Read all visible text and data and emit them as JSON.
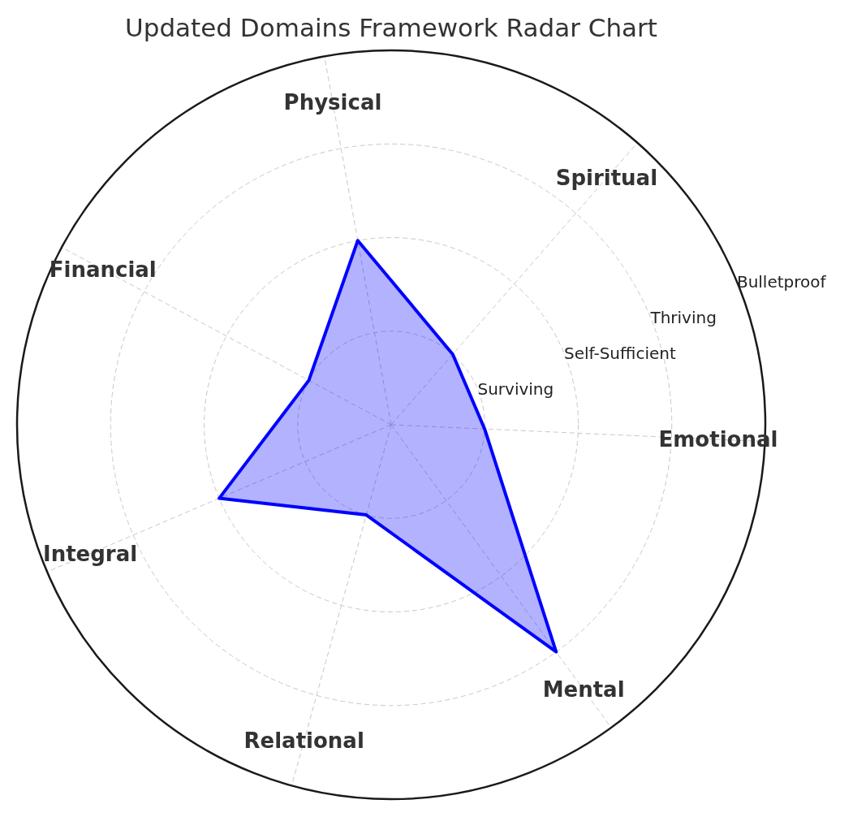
{
  "chart_data": {
    "type": "radar",
    "title": "Updated Domains Framework Radar Chart",
    "categories": [
      "Physical",
      "Spiritual",
      "Emotional",
      "Mental",
      "Relational",
      "Integral",
      "Financial"
    ],
    "series": [
      {
        "color": "#0000ff",
        "values": [
          2,
          1,
          1,
          3,
          1,
          2,
          1
        ]
      }
    ],
    "ylim": [
      0,
      4
    ],
    "yticks": [
      {
        "value": 1,
        "label": "Surviving"
      },
      {
        "value": 2,
        "label": "Self-Sufficient"
      },
      {
        "value": 3,
        "label": "Thriving"
      },
      {
        "value": 4,
        "label": "Bulletproof"
      }
    ],
    "grid": true,
    "marker": "none",
    "line_style": "solid"
  }
}
